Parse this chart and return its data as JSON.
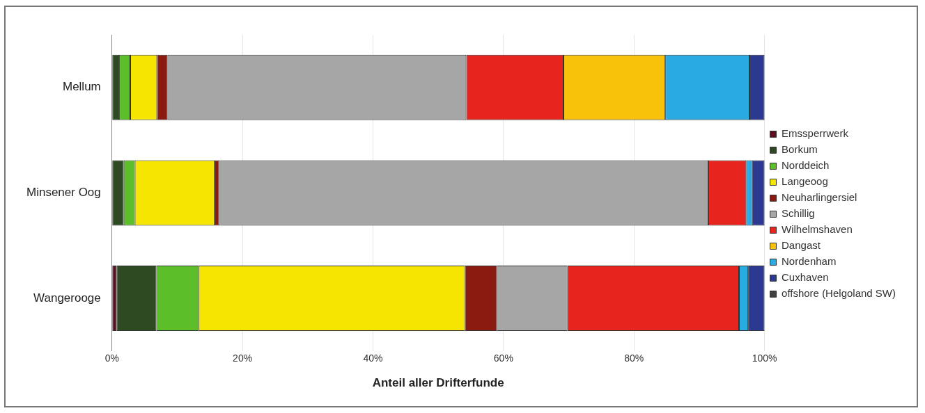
{
  "chart_data": {
    "type": "bar",
    "orientation": "horizontal",
    "stacked": true,
    "categories": [
      "Mellum",
      "Minsener Oog",
      "Wangerooge"
    ],
    "series": [
      {
        "name": "Emssperrwerk",
        "color": "#5a1020",
        "values": [
          0,
          0,
          0.7
        ]
      },
      {
        "name": "Borkum",
        "color": "#2e4a22",
        "values": [
          1.1,
          1.8,
          6.1
        ]
      },
      {
        "name": "Norddeich",
        "color": "#5cbf2a",
        "values": [
          1.7,
          1.7,
          6.5
        ]
      },
      {
        "name": "Langeoog",
        "color": "#f5e500",
        "values": [
          4.1,
          12.2,
          40.8
        ]
      },
      {
        "name": "Neuharlingersiel",
        "color": "#8b1a10",
        "values": [
          1.6,
          0.7,
          4.9
        ]
      },
      {
        "name": "Schillig",
        "color": "#a6a6a6",
        "values": [
          45.8,
          75.0,
          10.8
        ]
      },
      {
        "name": "Wilhelmshaven",
        "color": "#e8241e",
        "values": [
          14.9,
          5.8,
          26.3
        ]
      },
      {
        "name": "Dangast",
        "color": "#f9c20a",
        "values": [
          15.6,
          0,
          0
        ]
      },
      {
        "name": "Nordenham",
        "color": "#29aae1",
        "values": [
          12.9,
          0.9,
          1.4
        ]
      },
      {
        "name": "Cuxhaven",
        "color": "#2b3990",
        "values": [
          2.3,
          1.9,
          2.5
        ]
      },
      {
        "name": "offshore (Helgoland SW)",
        "color": "#404040",
        "values": [
          0,
          0,
          0
        ]
      }
    ],
    "xlabel": "Anteil aller Drifterfunde",
    "xlim": [
      0,
      100
    ],
    "xticks": [
      {
        "value": 0,
        "label": "0%"
      },
      {
        "value": 20,
        "label": "20%"
      },
      {
        "value": 40,
        "label": "40%"
      },
      {
        "value": 60,
        "label": "60%"
      },
      {
        "value": 80,
        "label": "80%"
      },
      {
        "value": 100,
        "label": "100%"
      }
    ],
    "grid": "x",
    "legend": "right"
  }
}
